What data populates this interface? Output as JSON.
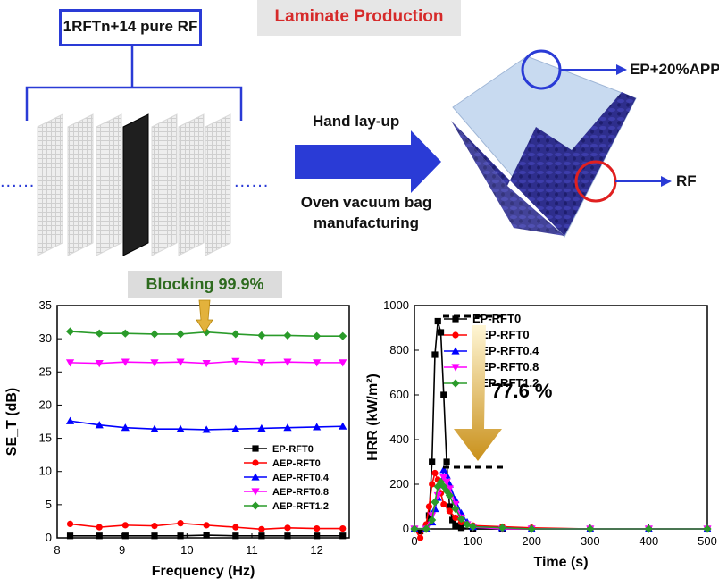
{
  "top": {
    "title": "Laminate Production",
    "stack_label": "1RFTn+14 pure RF",
    "dots_left": "......",
    "dots_right": "......",
    "arrow_top_text": "Hand lay-up",
    "arrow_bottom_text_1": "Oven vacuum bag",
    "arrow_bottom_text_2": "manufacturing",
    "coating_label": "EP+20%APP",
    "fabric_label": "RF"
  },
  "banner": {
    "text": "Blocking 99.9%"
  },
  "reduction": {
    "text": "77.6 %"
  },
  "colors": {
    "title_red": "#d62a2a",
    "arrow_blue": "#2a3bd6",
    "fabric_navy": "#2e2e8c",
    "banner_green": "#2d6a1e"
  },
  "chart_data": [
    {
      "type": "line",
      "xlabel": "Frequency (Hz)",
      "ylabel": "SE_T (dB)",
      "xlim": [
        8,
        12.5
      ],
      "ylim": [
        0,
        35
      ],
      "xticks": [
        8,
        9,
        10,
        11,
        12
      ],
      "yticks": [
        0,
        5,
        10,
        15,
        20,
        25,
        30,
        35
      ],
      "legend_position": "bottom-right",
      "series": [
        {
          "name": "EP-RFT0",
          "color": "#000000",
          "marker": "square",
          "x": [
            8.2,
            8.65,
            9.05,
            9.5,
            9.9,
            10.3,
            10.75,
            11.15,
            11.55,
            12.0,
            12.4
          ],
          "values": [
            0.3,
            0.3,
            0.3,
            0.3,
            0.3,
            0.4,
            0.3,
            0.3,
            0.3,
            0.3,
            0.3
          ]
        },
        {
          "name": "AEP-RFT0",
          "color": "#ff0000",
          "marker": "circle",
          "x": [
            8.2,
            8.65,
            9.05,
            9.5,
            9.9,
            10.3,
            10.75,
            11.15,
            11.55,
            12.0,
            12.4
          ],
          "values": [
            2.1,
            1.6,
            1.9,
            1.8,
            2.2,
            1.9,
            1.6,
            1.3,
            1.5,
            1.4,
            1.4
          ]
        },
        {
          "name": "AEP-RFT0.4",
          "color": "#0000ff",
          "marker": "triangle",
          "x": [
            8.2,
            8.65,
            9.05,
            9.5,
            9.9,
            10.3,
            10.75,
            11.15,
            11.55,
            12.0,
            12.4
          ],
          "values": [
            17.6,
            17.0,
            16.6,
            16.4,
            16.4,
            16.3,
            16.4,
            16.5,
            16.6,
            16.7,
            16.8
          ]
        },
        {
          "name": "AEP-RFT0.8",
          "color": "#ff00ff",
          "marker": "triangle-down",
          "x": [
            8.2,
            8.65,
            9.05,
            9.5,
            9.9,
            10.3,
            10.75,
            11.15,
            11.55,
            12.0,
            12.4
          ],
          "values": [
            26.4,
            26.3,
            26.5,
            26.4,
            26.5,
            26.3,
            26.6,
            26.4,
            26.5,
            26.4,
            26.4
          ]
        },
        {
          "name": "AEP-RFT1.2",
          "color": "#2a9b2a",
          "marker": "diamond",
          "x": [
            8.2,
            8.65,
            9.05,
            9.5,
            9.9,
            10.3,
            10.75,
            11.15,
            11.55,
            12.0,
            12.4
          ],
          "values": [
            31.1,
            30.8,
            30.8,
            30.7,
            30.7,
            31.0,
            30.7,
            30.5,
            30.5,
            30.4,
            30.4
          ]
        }
      ]
    },
    {
      "type": "line",
      "xlabel": "Time (s)",
      "ylabel": "HRR (kW/m²)",
      "xlim": [
        0,
        500
      ],
      "ylim": [
        0,
        1000
      ],
      "xticks": [
        0,
        100,
        200,
        300,
        400,
        500
      ],
      "yticks": [
        0,
        200,
        400,
        600,
        800,
        1000
      ],
      "legend_position": "top-right",
      "series": [
        {
          "name": "EP-RFT0",
          "color": "#000000",
          "marker": "square",
          "x": [
            0,
            10,
            20,
            25,
            30,
            35,
            40,
            45,
            50,
            55,
            60,
            65,
            70,
            80,
            100,
            150,
            200,
            300,
            400,
            500
          ],
          "values": [
            0,
            -10,
            5,
            60,
            300,
            780,
            930,
            880,
            600,
            300,
            100,
            40,
            15,
            5,
            0,
            0,
            0,
            0,
            0,
            0
          ]
        },
        {
          "name": "AEP-RFT0",
          "color": "#ff0000",
          "marker": "circle",
          "x": [
            0,
            10,
            20,
            25,
            30,
            35,
            40,
            45,
            50,
            60,
            70,
            80,
            100,
            150,
            200,
            300,
            400,
            500
          ],
          "values": [
            0,
            -40,
            20,
            100,
            200,
            250,
            220,
            160,
            110,
            80,
            50,
            30,
            15,
            10,
            5,
            0,
            0,
            0
          ]
        },
        {
          "name": "AEP-RFT0.4",
          "color": "#0000ff",
          "marker": "triangle",
          "x": [
            0,
            20,
            30,
            35,
            40,
            45,
            50,
            55,
            60,
            70,
            80,
            90,
            100,
            150,
            200,
            300,
            400,
            500
          ],
          "values": [
            0,
            0,
            30,
            90,
            140,
            200,
            265,
            240,
            200,
            130,
            70,
            30,
            10,
            5,
            0,
            0,
            0,
            0
          ]
        },
        {
          "name": "AEP-RFT0.8",
          "color": "#ff00ff",
          "marker": "triangle-down",
          "x": [
            0,
            20,
            30,
            40,
            50,
            55,
            60,
            70,
            80,
            90,
            100,
            150,
            200,
            300,
            400,
            500
          ],
          "values": [
            0,
            0,
            60,
            150,
            230,
            210,
            180,
            110,
            50,
            20,
            8,
            0,
            0,
            0,
            0,
            0
          ]
        },
        {
          "name": "AEP-RFT1.2",
          "color": "#2a9b2a",
          "marker": "diamond",
          "x": [
            0,
            20,
            30,
            35,
            40,
            45,
            50,
            55,
            60,
            70,
            80,
            90,
            100,
            150,
            200,
            300,
            400,
            500
          ],
          "values": [
            0,
            0,
            40,
            120,
            190,
            210,
            190,
            170,
            150,
            90,
            45,
            20,
            10,
            5,
            0,
            0,
            0,
            0
          ]
        }
      ]
    }
  ]
}
